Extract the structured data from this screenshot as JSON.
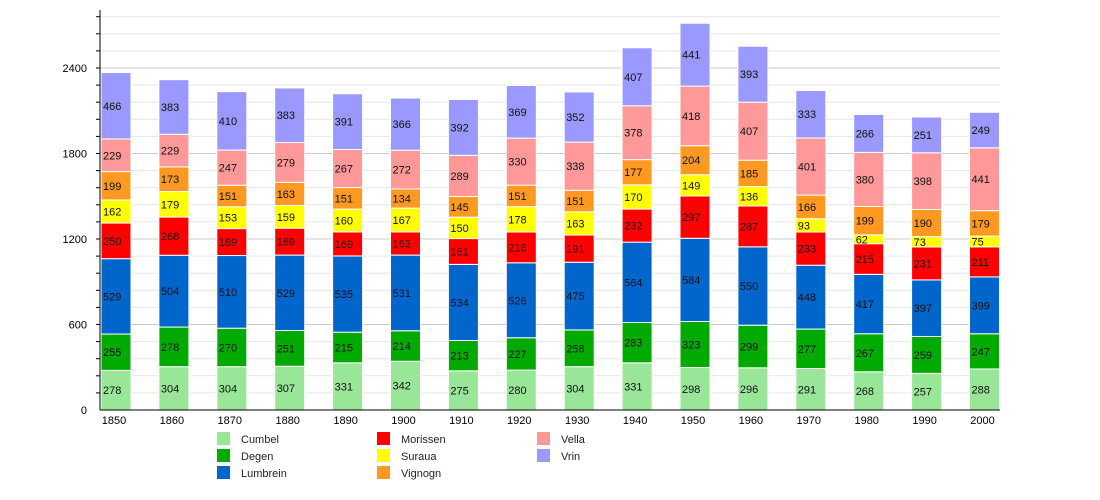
{
  "chart_data": {
    "type": "bar",
    "stacked": true,
    "title": "",
    "xlabel": "",
    "ylabel": "",
    "ylim": [
      0,
      2800
    ],
    "yticks": [
      0,
      600,
      1200,
      1800,
      2400
    ],
    "grid": true,
    "legend_position": "bottom",
    "categories": [
      "1850",
      "1860",
      "1870",
      "1880",
      "1890",
      "1900",
      "1910",
      "1920",
      "1930",
      "1940",
      "1950",
      "1960",
      "1970",
      "1980",
      "1990",
      "2000"
    ],
    "series": [
      {
        "name": "Cumbel",
        "color": "#99e699",
        "values": [
          278,
          304,
          304,
          307,
          331,
          342,
          275,
          280,
          304,
          331,
          298,
          296,
          291,
          268,
          257,
          288
        ]
      },
      {
        "name": "Degen",
        "color": "#00aa00",
        "values": [
          255,
          278,
          270,
          251,
          215,
          214,
          213,
          227,
          258,
          283,
          323,
          299,
          277,
          267,
          259,
          247
        ]
      },
      {
        "name": "Lumbrein",
        "color": "#0066cc",
        "values": [
          529,
          504,
          510,
          529,
          535,
          531,
          534,
          526,
          475,
          564,
          584,
          550,
          448,
          417,
          397,
          399
        ]
      },
      {
        "name": "Morissen",
        "color": "#ff0000",
        "values": [
          250,
          268,
          189,
          189,
          169,
          163,
          181,
          216,
          191,
          232,
          297,
          287,
          233,
          215,
          231,
          211
        ]
      },
      {
        "name": "Suraua",
        "color": "#ffff00",
        "values": [
          162,
          179,
          153,
          159,
          160,
          167,
          150,
          178,
          163,
          170,
          149,
          136,
          93,
          62,
          73,
          75
        ]
      },
      {
        "name": "Vignogn",
        "color": "#ff9922",
        "values": [
          199,
          173,
          151,
          163,
          151,
          134,
          145,
          151,
          151,
          177,
          204,
          185,
          166,
          199,
          190,
          179
        ]
      },
      {
        "name": "Vella",
        "color": "#ff9999",
        "values": [
          229,
          229,
          247,
          279,
          267,
          272,
          289,
          330,
          338,
          378,
          418,
          407,
          401,
          380,
          398,
          441
        ]
      },
      {
        "name": "Vrin",
        "color": "#9999ff",
        "values": [
          466,
          383,
          410,
          383,
          391,
          366,
          392,
          369,
          352,
          407,
          441,
          393,
          333,
          266,
          251,
          249
        ]
      }
    ]
  }
}
